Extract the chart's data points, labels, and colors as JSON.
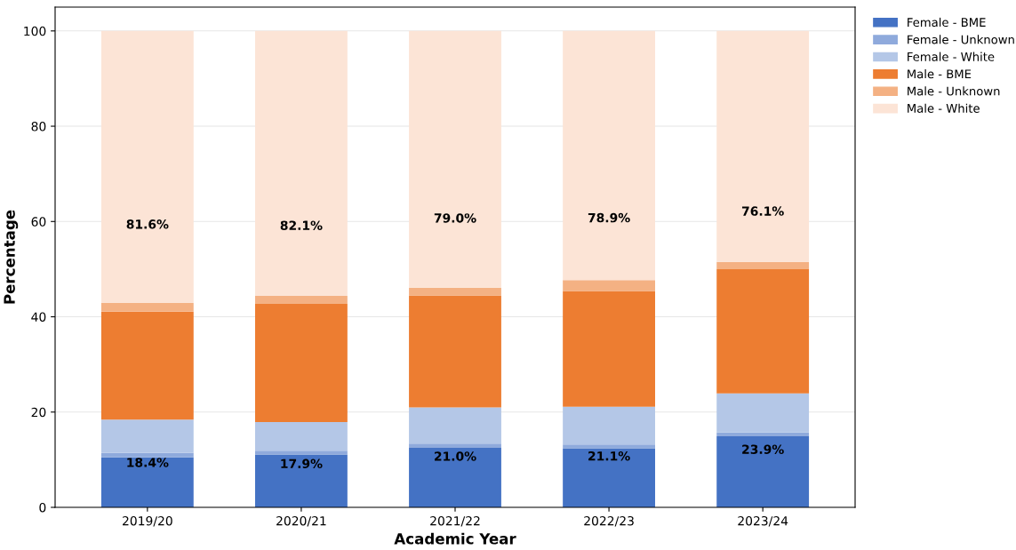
{
  "chart_data": {
    "type": "bar",
    "stacked": true,
    "xlabel": "Academic Year",
    "ylabel": "Percentage",
    "categories": [
      "2019/20",
      "2020/21",
      "2021/22",
      "2022/23",
      "2023/24"
    ],
    "series": [
      {
        "name": "Female - BME",
        "color": "#4472c4",
        "values": [
          10.5,
          11.1,
          12.5,
          12.4,
          14.9
        ]
      },
      {
        "name": "Female - Unknown",
        "color": "#8faadc",
        "values": [
          0.9,
          0.8,
          0.9,
          0.8,
          0.8
        ]
      },
      {
        "name": "Female - White",
        "color": "#b4c7e7",
        "values": [
          7.0,
          6.0,
          7.6,
          7.9,
          8.2
        ]
      },
      {
        "name": "Male - BME",
        "color": "#ed7d31",
        "values": [
          22.7,
          24.8,
          23.5,
          24.3,
          26.1
        ]
      },
      {
        "name": "Male - Unknown",
        "color": "#f4b183",
        "values": [
          1.8,
          1.7,
          1.6,
          2.3,
          1.5
        ]
      },
      {
        "name": "Male - White",
        "color": "#fce4d6",
        "values": [
          57.1,
          55.6,
          53.9,
          52.3,
          48.5
        ]
      }
    ],
    "annotations": [
      "18.4%",
      "17.9%",
      "21.0%",
      "21.1%",
      "23.9%",
      "81.6%",
      "82.1%",
      "79.0%",
      "78.9%",
      "76.1%"
    ],
    "ylim": [
      0,
      105
    ],
    "yticks": [
      0,
      20,
      40,
      60,
      80,
      100
    ],
    "grid": "y",
    "legend": "right"
  }
}
